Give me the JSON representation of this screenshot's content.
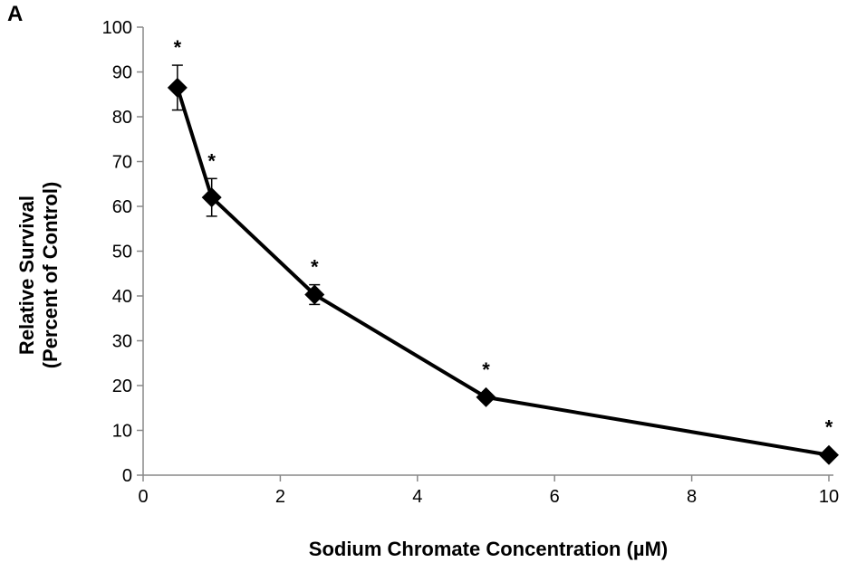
{
  "panel_label": "A",
  "chart_data": {
    "type": "line",
    "xlabel": "Sodium Chromate Concentration (µM)",
    "ylabel_lines": [
      "Relative Survival",
      "(Percent of Control)"
    ],
    "xlim": [
      0,
      10
    ],
    "ylim": [
      0,
      100
    ],
    "x_ticks": [
      0,
      2,
      4,
      6,
      8,
      10
    ],
    "y_ticks": [
      0,
      10,
      20,
      30,
      40,
      50,
      60,
      70,
      80,
      90,
      100
    ],
    "grid": false,
    "series": [
      {
        "marker": "diamond",
        "color": "#000000",
        "points": [
          {
            "x": 0.5,
            "y": 86.5,
            "err": 5.0,
            "annotation": "*"
          },
          {
            "x": 1.0,
            "y": 62.0,
            "err": 4.2,
            "annotation": "*"
          },
          {
            "x": 2.5,
            "y": 40.3,
            "err": 2.2,
            "annotation": "*"
          },
          {
            "x": 5.0,
            "y": 17.4,
            "err": 0.8,
            "annotation": "*"
          },
          {
            "x": 10.0,
            "y": 4.5,
            "err": 0.6,
            "annotation": "*"
          }
        ]
      }
    ]
  }
}
